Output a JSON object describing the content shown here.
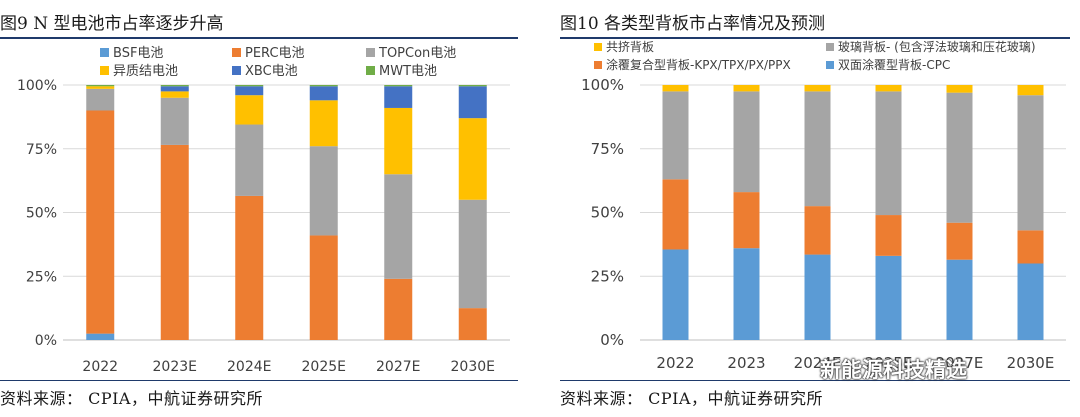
{
  "chart_data": [
    {
      "type": "stacked-bar",
      "title": "图9  N 型电池市占率逐步升高",
      "source": "资料来源：  CPIA，中航证券研究所",
      "categories": [
        "2022",
        "2023E",
        "2024E",
        "2025E",
        "2027E",
        "2030E"
      ],
      "yticks": [
        "0%",
        "25%",
        "50%",
        "75%",
        "100%"
      ],
      "ylim": [
        0,
        100
      ],
      "legend_position": "top",
      "series": [
        {
          "name": "BSF电池",
          "color": "#5b9bd5",
          "values": [
            2.5,
            0,
            0,
            0,
            0,
            0
          ]
        },
        {
          "name": "PERC电池",
          "color": "#ed7d31",
          "values": [
            87.5,
            76.5,
            56.5,
            41,
            24,
            12.5
          ]
        },
        {
          "name": "TOPCon电池",
          "color": "#a5a5a5",
          "values": [
            8.5,
            18.5,
            28,
            35,
            41,
            42.5
          ]
        },
        {
          "name": "异质结电池",
          "color": "#ffc000",
          "values": [
            1,
            2.5,
            11.5,
            18,
            26,
            32
          ]
        },
        {
          "name": "XBC电池",
          "color": "#4472c4",
          "values": [
            0,
            2,
            3.5,
            5.5,
            8.5,
            12.5
          ]
        },
        {
          "name": "MWT电池",
          "color": "#70ad47",
          "values": [
            0.5,
            0.5,
            0.5,
            0.5,
            0.5,
            0.5
          ]
        }
      ]
    },
    {
      "type": "stacked-bar",
      "title": "图10  各类型背板市占率情况及预测",
      "source": "资料来源：  CPIA，中航证券研究所",
      "categories": [
        "2022",
        "2023",
        "2024E",
        "2025E",
        "2027E",
        "2030E"
      ],
      "yticks": [
        "0%",
        "25%",
        "50%",
        "75%",
        "100%"
      ],
      "ylim": [
        0,
        100
      ],
      "legend_position": "top",
      "series": [
        {
          "name": "双面涂覆型背板-CPC",
          "color": "#5b9bd5",
          "values": [
            35.5,
            36,
            33.5,
            33,
            31.5,
            30
          ]
        },
        {
          "name": "涂覆复合型背板-KPX/TPX/PX/PPX",
          "color": "#ed7d31",
          "values": [
            27.5,
            22,
            19,
            16,
            14.5,
            13
          ]
        },
        {
          "name": "玻璃背板- (包含浮法玻璃和压花玻璃)",
          "color": "#a5a5a5",
          "values": [
            34.5,
            39.5,
            45,
            48.5,
            51,
            53
          ]
        },
        {
          "name": "共挤背板",
          "color": "#ffc000",
          "values": [
            2.5,
            2.5,
            2.5,
            2.5,
            3,
            4
          ]
        }
      ]
    }
  ],
  "watermark": "新能源科技精选"
}
